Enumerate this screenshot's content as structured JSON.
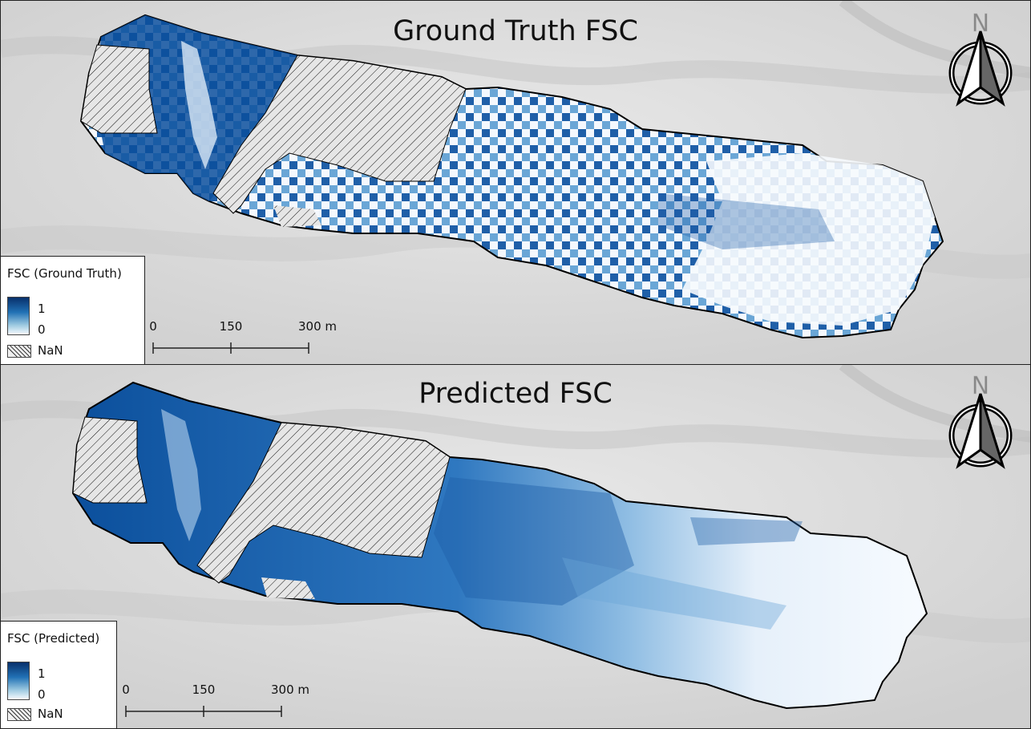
{
  "panels": [
    {
      "id": "ground-truth",
      "title": "Ground Truth FSC",
      "legend": {
        "title": "FSC (Ground Truth)",
        "max_label": "1",
        "min_label": "0",
        "nan_label": "NaN"
      },
      "scale_bar": {
        "labels": [
          "0",
          "150",
          "300 m"
        ]
      },
      "north_label": "N"
    },
    {
      "id": "predicted",
      "title": "Predicted FSC",
      "legend": {
        "title": "FSC (Predicted)",
        "max_label": "1",
        "min_label": "0",
        "nan_label": "NaN"
      },
      "scale_bar": {
        "labels": [
          "0",
          "150",
          "300 m"
        ]
      },
      "north_label": "N"
    }
  ],
  "colors": {
    "fsc_high": "#08306b",
    "fsc_mid": "#4a90c8",
    "fsc_low": "#f7fbff",
    "nan_hatch": "#111111",
    "hillshade": "#d9d9d9"
  },
  "icons": {
    "north_arrow": "north-arrow-icon"
  }
}
